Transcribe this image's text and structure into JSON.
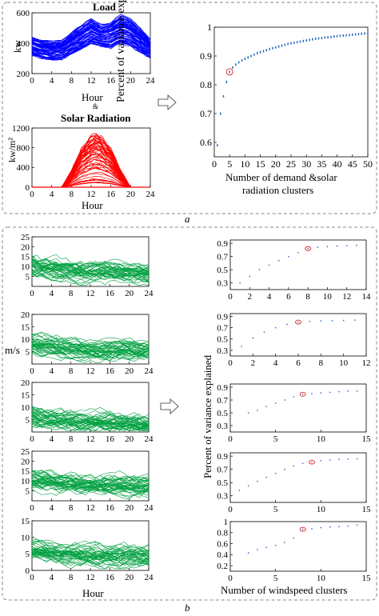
{
  "panel_a": {
    "label": "a",
    "load": {
      "title": "Load",
      "ylabel": "kw",
      "xlabel": "Hour",
      "yticks": [
        "200",
        "400",
        "600"
      ],
      "xticks": [
        "0",
        "4",
        "8",
        "12",
        "16",
        "20",
        "24"
      ],
      "color": "#0000ff"
    },
    "amp": "&",
    "solar": {
      "title": "Solar Radiation",
      "ylabel": "kw/m²",
      "xlabel": "Hour",
      "yticks": [
        "0",
        "400",
        "800",
        "1200"
      ],
      "xticks": [
        "0",
        "4",
        "8",
        "12",
        "16",
        "20",
        "24"
      ],
      "color": "#ff0000"
    },
    "elbow": {
      "ylabel": "Percent of variance explained",
      "xlabel_line1": "Number of demand &solar",
      "xlabel_line2": "radiation clusters",
      "yticks": [
        "0.6",
        "0.7",
        "0.8",
        "0.9",
        "1"
      ],
      "xticks": [
        "0",
        "5",
        "10",
        "15",
        "20",
        "25",
        "30",
        "35",
        "40",
        "45",
        "50"
      ]
    }
  },
  "panel_b": {
    "label": "b",
    "wind_ylabel": "m/s",
    "wind_xlabel": "Hour",
    "wind_xticks": [
      "0",
      "4",
      "8",
      "12",
      "16",
      "20",
      "24"
    ],
    "wind_color": "#00a040",
    "wind_panels": [
      {
        "yticks": [
          "5",
          "10",
          "15",
          "20",
          "25"
        ]
      },
      {
        "yticks": [
          "5",
          "10",
          "15",
          "20"
        ]
      },
      {
        "yticks": [
          "5",
          "10",
          "15",
          "20"
        ]
      },
      {
        "yticks": [
          "5",
          "10",
          "15",
          "20",
          "25"
        ]
      },
      {
        "yticks": [
          "0",
          "5",
          "10",
          "15"
        ]
      }
    ],
    "elbow_ylabel": "Percent of variance explained",
    "elbow_xlabel": "Number of windspeed clusters",
    "elbow_panels": [
      {
        "yticks": [
          "0.3",
          "0.5",
          "0.7",
          "0.9"
        ],
        "xticks": [
          "0",
          "2",
          "4",
          "6",
          "8",
          "10",
          "12",
          "14"
        ]
      },
      {
        "yticks": [
          "0.3",
          "0.5",
          "0.7",
          "0.9"
        ],
        "xticks": [
          "0",
          "2",
          "4",
          "6",
          "8",
          "10",
          "12"
        ]
      },
      {
        "yticks": [
          "0.3",
          "0.5",
          "0.7",
          "0.9"
        ],
        "xticks": [
          "0",
          "5",
          "10",
          "15"
        ]
      },
      {
        "yticks": [
          "0.3",
          "0.5",
          "0.7",
          "0.9"
        ],
        "xticks": [
          "0",
          "5",
          "10",
          "15"
        ]
      },
      {
        "yticks": [
          "0.2",
          "0.4",
          "0.6",
          "0.8",
          "1"
        ],
        "xticks": [
          "0",
          "5",
          "10",
          "15"
        ]
      }
    ]
  },
  "chart_data": [
    {
      "type": "line",
      "ylabel": "kw",
      "xlabel": "Hour",
      "xlim": [
        0,
        24
      ],
      "ylim": [
        200,
        600
      ],
      "description_series": "many daily load profiles",
      "envelope_hours": [
        0,
        2,
        4,
        6,
        8,
        10,
        12,
        14,
        16,
        18,
        20,
        22,
        24
      ],
      "upper": [
        440,
        420,
        410,
        420,
        470,
        520,
        560,
        520,
        540,
        590,
        560,
        500,
        420
      ],
      "lower": [
        320,
        300,
        290,
        295,
        330,
        360,
        400,
        380,
        370,
        400,
        380,
        340,
        300
      ]
    },
    {
      "type": "line",
      "ylabel": "kw/m²",
      "xlabel": "Hour",
      "xlim": [
        0,
        24
      ],
      "ylim": [
        0,
        1200
      ],
      "envelope_hours": [
        6,
        8,
        10,
        12,
        13,
        14,
        16,
        18,
        20
      ],
      "upper": [
        0,
        350,
        800,
        1050,
        1100,
        1050,
        800,
        350,
        0
      ]
    },
    {
      "type": "scatter",
      "ylabel": "Percent of variance explained",
      "xlabel": "Number of demand &solar radiation clusters",
      "xlim": [
        0,
        50
      ],
      "ylim": [
        0.55,
        1.0
      ],
      "x": [
        1,
        2,
        3,
        4,
        5,
        6,
        7,
        8,
        9,
        10,
        11,
        12,
        13,
        14,
        15,
        16,
        17,
        18,
        19,
        20,
        21,
        22,
        23,
        24,
        25,
        26,
        27,
        28,
        29,
        30,
        31,
        32,
        33,
        34,
        35,
        36,
        37,
        38,
        39,
        40,
        41,
        42,
        43,
        44,
        45,
        46,
        47,
        48,
        49,
        50
      ],
      "y": [
        0.59,
        0.7,
        0.76,
        0.81,
        0.845,
        0.86,
        0.87,
        0.878,
        0.885,
        0.89,
        0.895,
        0.9,
        0.905,
        0.91,
        0.913,
        0.917,
        0.92,
        0.924,
        0.927,
        0.93,
        0.933,
        0.936,
        0.939,
        0.942,
        0.944,
        0.946,
        0.948,
        0.95,
        0.952,
        0.954,
        0.956,
        0.958,
        0.96,
        0.961,
        0.962,
        0.964,
        0.965,
        0.966,
        0.968,
        0.969,
        0.97,
        0.971,
        0.972,
        0.973,
        0.974,
        0.975,
        0.976,
        0.977,
        0.978,
        0.979
      ],
      "highlight_x": 5
    },
    {
      "type": "line",
      "ylabel": "m/s",
      "xlabel": "Hour",
      "xlim": [
        0,
        24
      ],
      "ylim": [
        0,
        25
      ],
      "description_series": "wind speed profiles cluster 1"
    },
    {
      "type": "line",
      "ylabel": "m/s",
      "xlabel": "Hour",
      "xlim": [
        0,
        24
      ],
      "ylim": [
        0,
        20
      ],
      "description_series": "wind speed profiles cluster 2"
    },
    {
      "type": "line",
      "ylabel": "m/s",
      "xlabel": "Hour",
      "xlim": [
        0,
        24
      ],
      "ylim": [
        0,
        20
      ],
      "description_series": "wind speed profiles cluster 3"
    },
    {
      "type": "line",
      "ylabel": "m/s",
      "xlabel": "Hour",
      "xlim": [
        0,
        24
      ],
      "ylim": [
        0,
        25
      ],
      "description_series": "wind speed profiles cluster 4"
    },
    {
      "type": "line",
      "ylabel": "m/s",
      "xlabel": "Hour",
      "xlim": [
        0,
        24
      ],
      "ylim": [
        0,
        15
      ],
      "description_series": "wind speed profiles cluster 5"
    },
    {
      "type": "scatter",
      "xlim": [
        0,
        14
      ],
      "ylim": [
        0.2,
        0.95
      ],
      "x": [
        1,
        2,
        3,
        4,
        5,
        6,
        7,
        8,
        9,
        10,
        11,
        12,
        13
      ],
      "y": [
        0.3,
        0.4,
        0.5,
        0.57,
        0.64,
        0.7,
        0.76,
        0.82,
        0.84,
        0.85,
        0.86,
        0.865,
        0.87
      ],
      "highlight_x": 8
    },
    {
      "type": "scatter",
      "xlim": [
        0,
        12
      ],
      "ylim": [
        0.2,
        0.95
      ],
      "x": [
        1,
        2,
        3,
        4,
        5,
        6,
        7,
        8,
        9,
        10,
        11
      ],
      "y": [
        0.37,
        0.52,
        0.62,
        0.7,
        0.76,
        0.8,
        0.81,
        0.82,
        0.825,
        0.83,
        0.835
      ],
      "highlight_x": 6
    },
    {
      "type": "scatter",
      "xlim": [
        0,
        15
      ],
      "ylim": [
        0.2,
        0.95
      ],
      "x": [
        2,
        3,
        4,
        5,
        6,
        7,
        8,
        9,
        10,
        11,
        12,
        13,
        14
      ],
      "y": [
        0.5,
        0.54,
        0.6,
        0.65,
        0.7,
        0.75,
        0.79,
        0.8,
        0.81,
        0.82,
        0.83,
        0.84,
        0.84
      ],
      "highlight_x": 8
    },
    {
      "type": "scatter",
      "xlim": [
        0,
        15
      ],
      "ylim": [
        0.2,
        0.95
      ],
      "x": [
        1,
        2,
        3,
        4,
        5,
        6,
        7,
        8,
        9,
        10,
        11,
        12,
        13,
        14
      ],
      "y": [
        0.38,
        0.45,
        0.52,
        0.58,
        0.64,
        0.7,
        0.75,
        0.79,
        0.81,
        0.83,
        0.84,
        0.85,
        0.855,
        0.86
      ],
      "highlight_x": 9
    },
    {
      "type": "scatter",
      "xlim": [
        0,
        15
      ],
      "ylim": [
        0.1,
        1.0
      ],
      "x": [
        2,
        3,
        4,
        5,
        6,
        7,
        8,
        9,
        10,
        11,
        12,
        13,
        14
      ],
      "y": [
        0.43,
        0.49,
        0.53,
        0.57,
        0.62,
        0.7,
        0.86,
        0.87,
        0.89,
        0.9,
        0.91,
        0.92,
        0.94
      ],
      "highlight_x": 8
    }
  ]
}
